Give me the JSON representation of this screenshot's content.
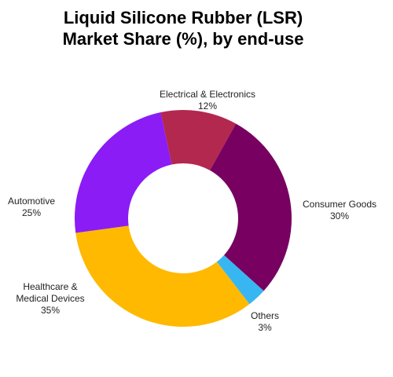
{
  "chart_data": {
    "type": "donut",
    "title": [
      "Liquid Silicone Rubber (LSR)",
      "Market Share (%), by end-use"
    ],
    "categories": [
      "Electrical & Electronics",
      "Consumer Goods",
      "Others",
      "Healthcare & Medical Devices",
      "Automotive"
    ],
    "values": [
      12,
      30,
      3,
      35,
      25
    ],
    "value_labels": [
      "12%",
      "30%",
      "3%",
      "35%",
      "25%"
    ],
    "colors": [
      "#b3284f",
      "#770060",
      "#38b6f2",
      "#ffb900",
      "#8b1cf5"
    ]
  }
}
